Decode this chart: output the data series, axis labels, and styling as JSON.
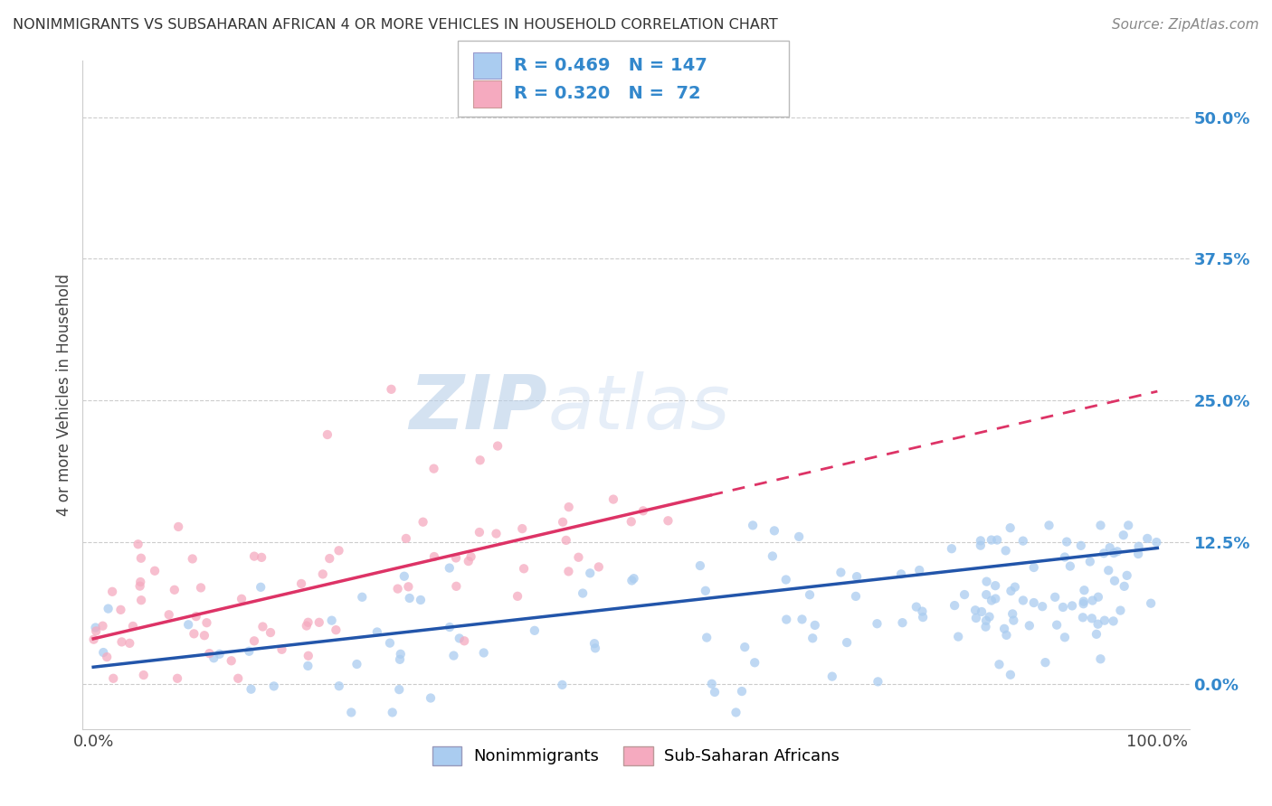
{
  "title": "NONIMMIGRANTS VS SUBSAHARAN AFRICAN 4 OR MORE VEHICLES IN HOUSEHOLD CORRELATION CHART",
  "source": "Source: ZipAtlas.com",
  "ylabel": "4 or more Vehicles in Household",
  "blue_R": 0.469,
  "blue_N": 147,
  "pink_R": 0.32,
  "pink_N": 72,
  "blue_color": "#aaccf0",
  "pink_color": "#f5aabf",
  "blue_line_color": "#2255aa",
  "pink_line_color": "#dd3366",
  "legend_label_blue": "Nonimmigrants",
  "legend_label_pink": "Sub-Saharan Africans",
  "bg_color": "#ffffff",
  "grid_color": "#cccccc",
  "title_color": "#333333",
  "source_color": "#888888",
  "ytick_color": "#3388cc",
  "ytick_vals": [
    0,
    12.5,
    25.0,
    37.5,
    50.0
  ],
  "ytick_labels": [
    "0.0%",
    "12.5%",
    "25.0%",
    "37.5%",
    "50.0%"
  ],
  "xtick_vals": [
    0,
    100
  ],
  "xtick_labels": [
    "0.0%",
    "100.0%"
  ],
  "xlim": [
    -1,
    103
  ],
  "ylim": [
    -4,
    55
  ],
  "legend_R_N_color": "#3388cc",
  "legend_text_color": "#222222"
}
